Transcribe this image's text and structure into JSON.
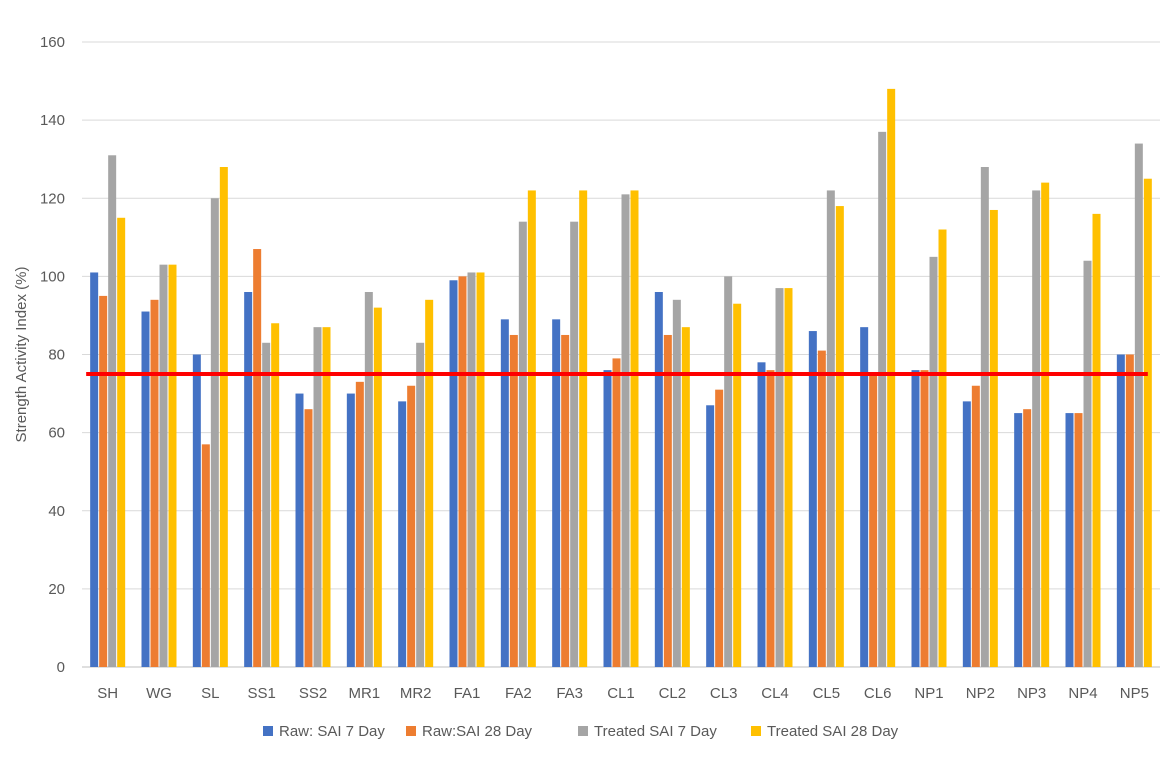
{
  "chart_data": {
    "type": "bar",
    "title": "",
    "xlabel": "",
    "ylabel": "Strength Activity Index (%)",
    "ylim": [
      0,
      160
    ],
    "yticks": [
      0,
      20,
      40,
      60,
      80,
      100,
      120,
      140,
      160
    ],
    "grid": true,
    "legend_position": "bottom",
    "categories": [
      "SH",
      "WG",
      "SL",
      "SS1",
      "SS2",
      "MR1",
      "MR2",
      "FA1",
      "FA2",
      "FA3",
      "CL1",
      "CL2",
      "CL3",
      "CL4",
      "CL5",
      "CL6",
      "NP1",
      "NP2",
      "NP3",
      "NP4",
      "NP5"
    ],
    "series": [
      {
        "name": "Raw: SAI 7 Day",
        "color": "#4472C4",
        "values": [
          101,
          91,
          80,
          96,
          70,
          70,
          68,
          99,
          89,
          89,
          76,
          96,
          67,
          78,
          86,
          87,
          76,
          68,
          65,
          65,
          80
        ]
      },
      {
        "name": "Raw:SAI 28 Day",
        "color": "#ED7D31",
        "values": [
          95,
          94,
          57,
          107,
          66,
          73,
          72,
          100,
          85,
          85,
          79,
          85,
          71,
          76,
          81,
          75,
          76,
          72,
          66,
          65,
          80
        ]
      },
      {
        "name": "Treated SAI 7 Day",
        "color": "#A5A5A5",
        "values": [
          131,
          103,
          120,
          83,
          87,
          96,
          83,
          101,
          114,
          114,
          121,
          94,
          100,
          97,
          122,
          137,
          105,
          128,
          122,
          104,
          134
        ]
      },
      {
        "name": "Treated SAI 28 Day",
        "color": "#FFC000",
        "values": [
          115,
          103,
          128,
          88,
          87,
          92,
          94,
          101,
          122,
          122,
          122,
          87,
          93,
          97,
          118,
          148,
          112,
          117,
          124,
          116,
          125
        ]
      }
    ],
    "reference_line": {
      "value": 75,
      "color": "#FF0000",
      "x_start": "SH",
      "x_end": "NP5"
    }
  }
}
